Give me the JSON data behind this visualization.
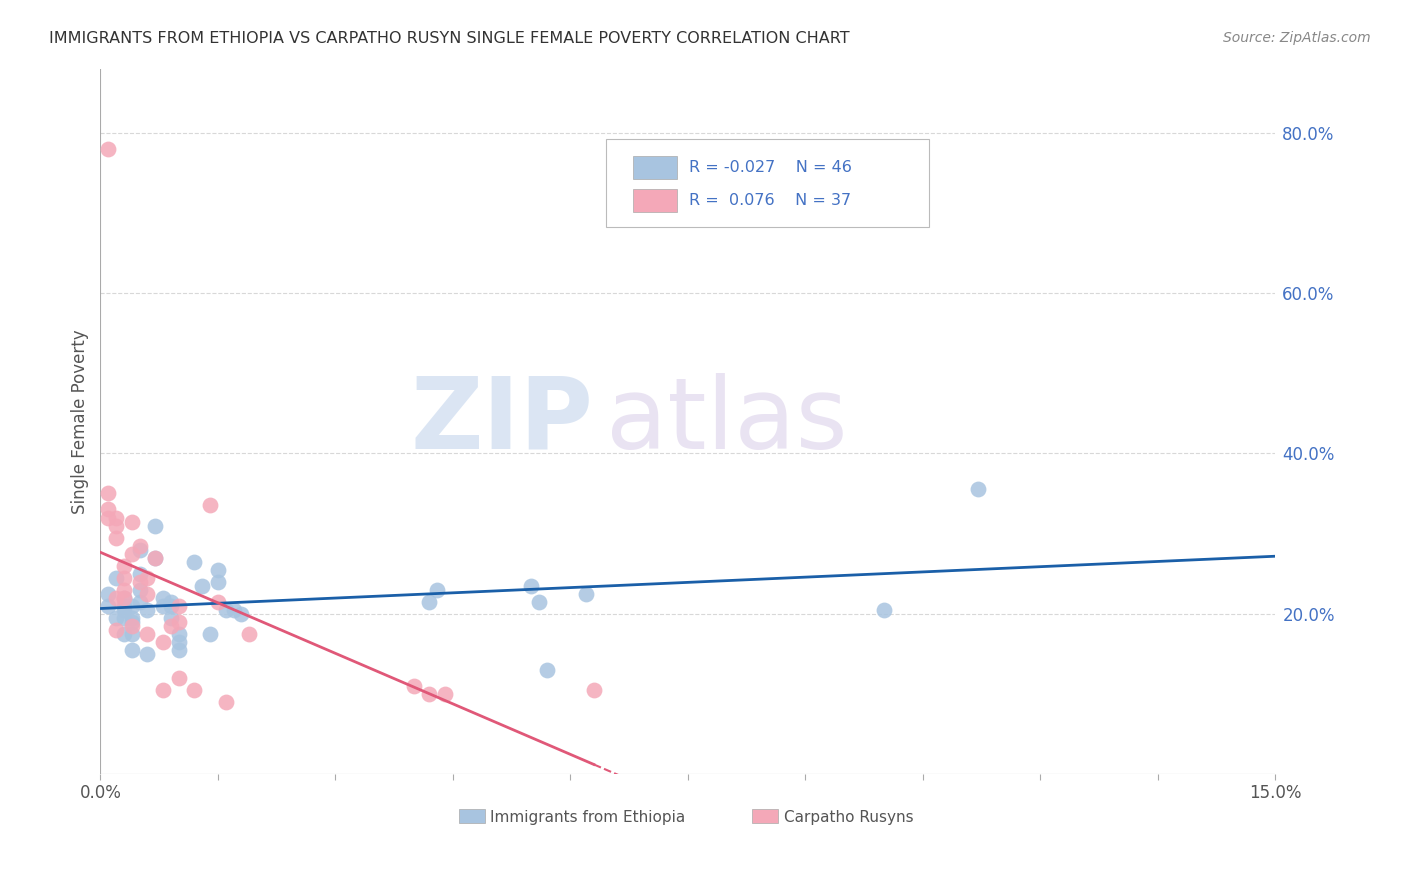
{
  "title": "IMMIGRANTS FROM ETHIOPIA VS CARPATHO RUSYN SINGLE FEMALE POVERTY CORRELATION CHART",
  "source": "Source: ZipAtlas.com",
  "ylabel": "Single Female Poverty",
  "right_yticks": [
    0.2,
    0.4,
    0.6,
    0.8
  ],
  "right_yticklabels": [
    "20.0%",
    "40.0%",
    "60.0%",
    "80.0%"
  ],
  "xlim": [
    0.0,
    0.15
  ],
  "ylim": [
    0.0,
    0.88
  ],
  "blue_color": "#a8c4e0",
  "pink_color": "#f4a8b8",
  "blue_line_color": "#1a5fa8",
  "pink_line_color": "#e05878",
  "grid_color": "#d8d8d8",
  "background_color": "#ffffff",
  "title_color": "#333333",
  "axis_color": "#555555",
  "right_label_color": "#4472c4",
  "legend_text_color": "#4472c4",
  "ethiopia_x": [
    0.001,
    0.001,
    0.002,
    0.002,
    0.003,
    0.003,
    0.003,
    0.003,
    0.003,
    0.004,
    0.004,
    0.004,
    0.004,
    0.004,
    0.005,
    0.005,
    0.005,
    0.005,
    0.006,
    0.006,
    0.007,
    0.007,
    0.008,
    0.008,
    0.009,
    0.009,
    0.009,
    0.01,
    0.01,
    0.01,
    0.012,
    0.013,
    0.014,
    0.015,
    0.015,
    0.016,
    0.017,
    0.018,
    0.042,
    0.043,
    0.055,
    0.056,
    0.057,
    0.062,
    0.1,
    0.112
  ],
  "ethiopia_y": [
    0.225,
    0.21,
    0.245,
    0.195,
    0.205,
    0.195,
    0.175,
    0.22,
    0.21,
    0.21,
    0.195,
    0.19,
    0.175,
    0.155,
    0.28,
    0.25,
    0.23,
    0.215,
    0.205,
    0.15,
    0.31,
    0.27,
    0.22,
    0.21,
    0.215,
    0.21,
    0.195,
    0.175,
    0.165,
    0.155,
    0.265,
    0.235,
    0.175,
    0.255,
    0.24,
    0.205,
    0.205,
    0.2,
    0.215,
    0.23,
    0.235,
    0.215,
    0.13,
    0.225,
    0.205,
    0.355
  ],
  "rusyn_x": [
    0.001,
    0.001,
    0.001,
    0.001,
    0.002,
    0.002,
    0.002,
    0.002,
    0.002,
    0.003,
    0.003,
    0.003,
    0.003,
    0.004,
    0.004,
    0.004,
    0.005,
    0.005,
    0.006,
    0.006,
    0.006,
    0.007,
    0.008,
    0.008,
    0.009,
    0.01,
    0.01,
    0.01,
    0.012,
    0.014,
    0.015,
    0.016,
    0.019,
    0.04,
    0.042,
    0.044,
    0.063
  ],
  "rusyn_y": [
    0.78,
    0.35,
    0.33,
    0.32,
    0.32,
    0.31,
    0.295,
    0.22,
    0.18,
    0.26,
    0.245,
    0.23,
    0.22,
    0.315,
    0.275,
    0.185,
    0.285,
    0.24,
    0.245,
    0.225,
    0.175,
    0.27,
    0.165,
    0.105,
    0.185,
    0.21,
    0.19,
    0.12,
    0.105,
    0.335,
    0.215,
    0.09,
    0.175,
    0.11,
    0.1,
    0.1,
    0.105
  ]
}
